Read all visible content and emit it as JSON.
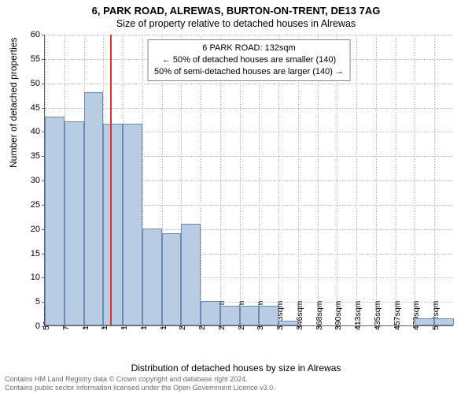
{
  "title_main": "6, PARK ROAD, ALREWAS, BURTON-ON-TRENT, DE13 7AG",
  "title_sub": "Size of property relative to detached houses in Alrewas",
  "ylabel": "Number of detached properties",
  "xlabel": "Distribution of detached houses by size in Alrewas",
  "chart": {
    "type": "histogram",
    "ylim": [
      0,
      60
    ],
    "ytick_step": 5,
    "x_labels": [
      "56sqm",
      "78sqm",
      "101sqm",
      "123sqm",
      "145sqm",
      "168sqm",
      "190sqm",
      "212sqm",
      "234sqm",
      "257sqm",
      "279sqm",
      "301sqm",
      "323sqm",
      "346sqm",
      "368sqm",
      "390sqm",
      "413sqm",
      "435sqm",
      "457sqm",
      "479sqm",
      "502sqm"
    ],
    "values": [
      43,
      42,
      48,
      41.5,
      41.5,
      20,
      19,
      21,
      5,
      4,
      4,
      4,
      1,
      0,
      0,
      0,
      0,
      0,
      0,
      1.5,
      1.5
    ],
    "bar_fill": "#b8cde3",
    "bar_stroke": "#6a8cb0",
    "background": "#ffffff",
    "grid_color": "#bdbdbd",
    "axis_color": "#666666",
    "marker": {
      "bin_index": 3,
      "fraction_into_bin": 0.41,
      "color": "#e03030"
    },
    "label_fontsize": 12,
    "tick_fontsize": 11,
    "title_fontsize": 13
  },
  "annotation": {
    "line1": "6 PARK ROAD: 132sqm",
    "line2": "← 50% of detached houses are smaller (140)",
    "line3": "50% of semi-detached houses are larger (140) →"
  },
  "footer": {
    "line1": "Contains HM Land Registry data © Crown copyright and database right 2024.",
    "line2": "Contains public sector information licensed under the Open Government Licence v3.0."
  }
}
